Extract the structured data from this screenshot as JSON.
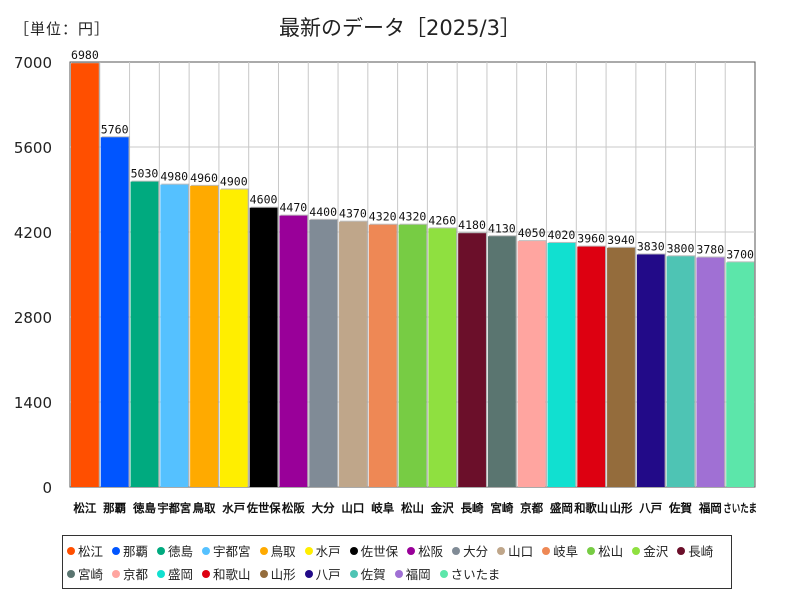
{
  "unit_label": "［単位：円］",
  "chart_data": {
    "type": "bar",
    "title": "最新のデータ［2025/3］",
    "xlabel": "",
    "ylabel": "円",
    "ylim": [
      0,
      7000
    ],
    "yticks": [
      0,
      1400,
      2800,
      4200,
      5600,
      7000
    ],
    "grid": true,
    "legend_position": "bottom",
    "categories": [
      "松江",
      "那覇",
      "徳島",
      "宇都宮",
      "鳥取",
      "水戸",
      "佐世保",
      "松阪",
      "大分",
      "山口",
      "岐阜",
      "松山",
      "金沢",
      "長崎",
      "宮崎",
      "京都",
      "盛岡",
      "和歌山",
      "山形",
      "八戸",
      "佐賀",
      "福岡",
      "さいたま"
    ],
    "values": [
      6980,
      5760,
      5030,
      4980,
      4960,
      4900,
      4600,
      4470,
      4400,
      4370,
      4320,
      4320,
      4260,
      4180,
      4130,
      4050,
      4020,
      3960,
      3940,
      3830,
      3800,
      3780,
      3700
    ],
    "colors": [
      "#ff4f00",
      "#0055ff",
      "#00aa7f",
      "#55c1ff",
      "#ffaa00",
      "#ffee00",
      "#000000",
      "#990099",
      "#808b96",
      "#bfa68a",
      "#ee8855",
      "#77cc44",
      "#8fe040",
      "#6b0f2a",
      "#5a7570",
      "#ffa5a0",
      "#11e0d0",
      "#dd0011",
      "#946c3c",
      "#220a88",
      "#4ec4b4",
      "#a070d4",
      "#5ce6aa"
    ]
  }
}
